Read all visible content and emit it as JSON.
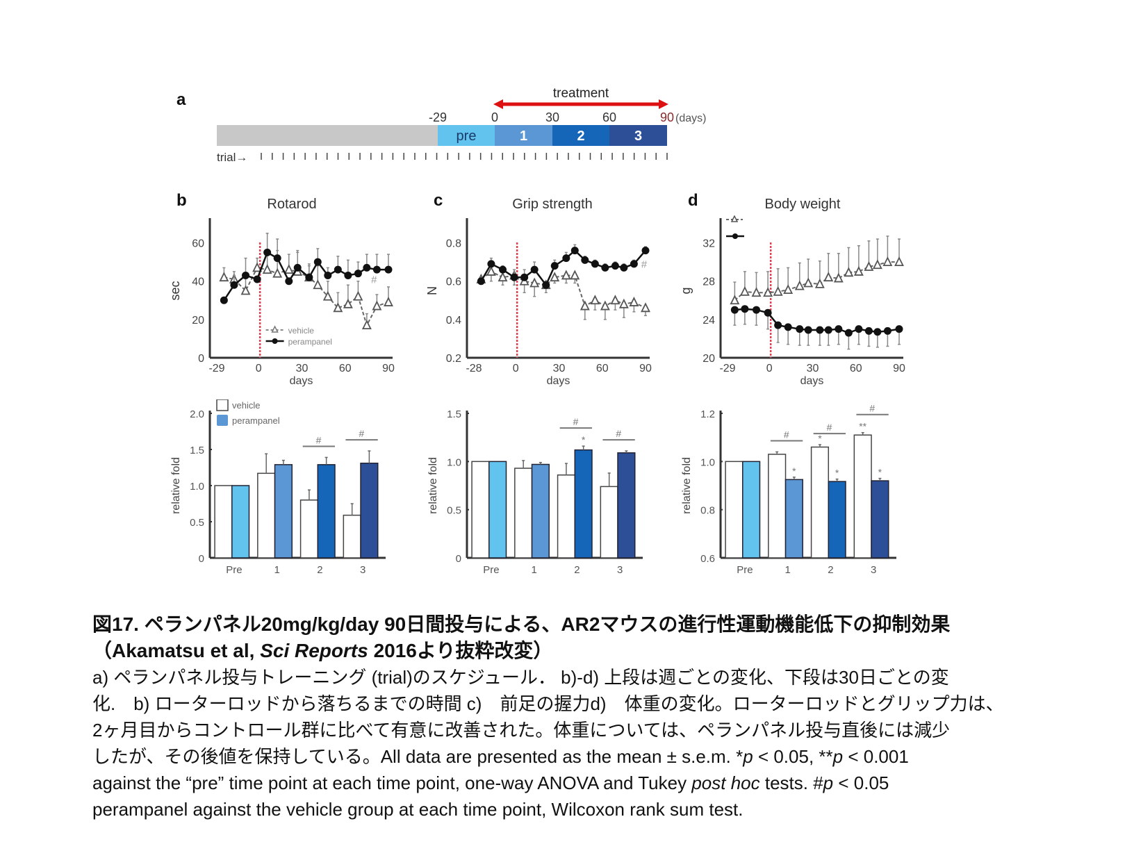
{
  "panels": {
    "a": {
      "letter": "a"
    },
    "b": {
      "letter": "b",
      "title": "Rotarod"
    },
    "c": {
      "letter": "c",
      "title": "Grip strength"
    },
    "d": {
      "letter": "d",
      "title": "Body weight"
    }
  },
  "colors": {
    "pre_gray": "#c8c8c8",
    "pre": "#63c3ef",
    "month1": "#5b97d4",
    "month2": "#1565b8",
    "month3": "#2c4f97",
    "treatment_arrow": "#dd1111",
    "red_line": "#e04050",
    "vehicle_marker": "#ffffff",
    "perampanel_marker": "#111111"
  },
  "chart_data": [
    {
      "id": "a",
      "type": "timeline",
      "treatment_label": "treatment",
      "tick_labels": [
        "-29",
        "0",
        "30",
        "60",
        "90"
      ],
      "unit_label": "(days)",
      "segments": [
        {
          "label": "",
          "color_key": "pre_gray"
        },
        {
          "label": "pre",
          "color_key": "pre"
        },
        {
          "label": "1",
          "color_key": "month1"
        },
        {
          "label": "2",
          "color_key": "month2"
        },
        {
          "label": "3",
          "color_key": "month3"
        }
      ],
      "trial_label": "trial→",
      "trial_tick_count": 38
    },
    {
      "id": "b-line",
      "type": "line",
      "title": "Rotarod",
      "xlabel": "days",
      "ylabel": "sec",
      "xlim": [
        -29,
        90
      ],
      "ylim": [
        0,
        70
      ],
      "xticks": [
        -29,
        0,
        30,
        60,
        90
      ],
      "xtick_labels": [
        "-29",
        "0",
        "30",
        "60",
        "90"
      ],
      "yticks": [
        0,
        20,
        40,
        60
      ],
      "ytick_labels": [
        "0",
        "20",
        "40",
        "60"
      ],
      "treatment_start": 0,
      "legend": [
        "vehicle",
        "perampanel"
      ],
      "legend_position": "bottom-center",
      "annotations": [
        {
          "text": "#",
          "x": 80,
          "y": 39
        }
      ],
      "series": [
        {
          "name": "vehicle",
          "marker": "triangle-open",
          "line": "dashed",
          "x": [
            -24,
            -17,
            -9,
            -1,
            6,
            13,
            21,
            27,
            35,
            41,
            48,
            55,
            62,
            69,
            75,
            82,
            90
          ],
          "y": [
            42,
            41,
            35,
            47,
            46,
            44,
            46,
            45,
            42,
            38,
            32,
            26,
            28,
            32,
            17,
            27,
            29
          ],
          "err": [
            5,
            4,
            7,
            5,
            9,
            12,
            8,
            10,
            6,
            10,
            8,
            8,
            10,
            8,
            6,
            6,
            8
          ]
        },
        {
          "name": "perampanel",
          "marker": "circle-filled",
          "line": "solid",
          "x": [
            -24,
            -17,
            -9,
            -1,
            6,
            13,
            21,
            27,
            35,
            41,
            48,
            55,
            62,
            69,
            75,
            82,
            90
          ],
          "y": [
            30,
            38,
            43,
            41,
            55,
            52,
            40,
            47,
            42,
            50,
            43,
            46,
            43,
            44,
            47,
            46,
            46
          ],
          "err": [
            0,
            5,
            9,
            0,
            10,
            10,
            0,
            9,
            7,
            7,
            4,
            7,
            8,
            6,
            7,
            8,
            8
          ]
        }
      ]
    },
    {
      "id": "c-line",
      "type": "line",
      "title": "Grip strength",
      "xlabel": "days",
      "ylabel": "N",
      "xlim": [
        -29,
        90
      ],
      "ylim": [
        0.2,
        0.9
      ],
      "xticks": [
        -29,
        0,
        30,
        60,
        90
      ],
      "xtick_labels": [
        "-28",
        "0",
        "30",
        "60",
        "90"
      ],
      "yticks": [
        0.2,
        0.4,
        0.6,
        0.8
      ],
      "ytick_labels": [
        "0.2",
        "0.4",
        "0.6",
        "0.8"
      ],
      "treatment_start": 0,
      "annotations": [
        {
          "text": "#",
          "x": 89,
          "y": 0.67
        }
      ],
      "series": [
        {
          "name": "vehicle",
          "marker": "triangle-open",
          "line": "dashed",
          "x": [
            -24,
            -17,
            -9,
            -1,
            6,
            13,
            21,
            27,
            35,
            41,
            48,
            55,
            62,
            69,
            75,
            82,
            90
          ],
          "y": [
            0.61,
            0.65,
            0.62,
            0.63,
            0.6,
            0.59,
            0.58,
            0.62,
            0.63,
            0.63,
            0.47,
            0.5,
            0.47,
            0.5,
            0.48,
            0.49,
            0.46
          ],
          "err": [
            0.02,
            0.05,
            0.04,
            0.05,
            0.06,
            0.07,
            0.04,
            0.03,
            0.04,
            0.04,
            0.07,
            0.05,
            0.07,
            0.05,
            0.07,
            0.05,
            0.04
          ]
        },
        {
          "name": "perampanel",
          "marker": "circle-filled",
          "line": "solid",
          "x": [
            -24,
            -17,
            -9,
            -1,
            6,
            13,
            21,
            27,
            35,
            41,
            48,
            55,
            62,
            69,
            75,
            82,
            90
          ],
          "y": [
            0.6,
            0.69,
            0.66,
            0.62,
            0.62,
            0.66,
            0.58,
            0.68,
            0.72,
            0.76,
            0.71,
            0.69,
            0.67,
            0.68,
            0.67,
            0.69,
            0.76
          ],
          "err": [
            0.02,
            0.03,
            0.02,
            0.04,
            0.04,
            0.04,
            0.02,
            0.03,
            0.03,
            0.03,
            0.02,
            0.02,
            0.02,
            0.02,
            0.02,
            0.02,
            0.02
          ]
        }
      ]
    },
    {
      "id": "d-line",
      "type": "line",
      "title": "Body weight",
      "xlabel": "days",
      "ylabel": "g",
      "xlim": [
        -29,
        90
      ],
      "ylim": [
        20,
        34
      ],
      "xticks": [
        -29,
        0,
        30,
        60,
        90
      ],
      "xtick_labels": [
        "-29",
        "0",
        "30",
        "60",
        "90"
      ],
      "yticks": [
        20,
        24,
        28,
        32
      ],
      "ytick_labels": [
        "20",
        "24",
        "28",
        "32"
      ],
      "treatment_start": 0,
      "legend_position": "top-left",
      "series": [
        {
          "name": "vehicle",
          "marker": "triangle-open",
          "line": "dashed",
          "x": [
            -24,
            -17,
            -9,
            -1,
            6,
            13,
            21,
            27,
            35,
            41,
            48,
            55,
            62,
            69,
            75,
            82,
            90
          ],
          "y": [
            26.0,
            26.9,
            26.8,
            26.8,
            26.9,
            27.1,
            27.5,
            27.8,
            27.7,
            28.4,
            28.3,
            28.9,
            29.0,
            29.5,
            29.7,
            30.0,
            30.0
          ],
          "err": [
            1.9,
            2.1,
            2.1,
            2.2,
            2.4,
            2.3,
            2.4,
            2.5,
            2.4,
            2.5,
            2.6,
            2.6,
            2.7,
            2.7,
            2.7,
            2.7,
            2.4
          ]
        },
        {
          "name": "perampanel",
          "marker": "circle-filled",
          "line": "solid",
          "x": [
            -24,
            -17,
            -9,
            -1,
            6,
            13,
            21,
            27,
            35,
            41,
            48,
            55,
            62,
            69,
            75,
            82,
            90
          ],
          "y": [
            25.0,
            25.1,
            25.0,
            24.7,
            23.4,
            23.2,
            23.0,
            22.9,
            22.9,
            22.9,
            23.0,
            22.6,
            23.0,
            22.8,
            22.7,
            22.8,
            23.0
          ],
          "err": [
            1.6,
            1.6,
            1.6,
            1.7,
            1.8,
            1.8,
            1.7,
            1.6,
            1.6,
            1.6,
            1.6,
            1.7,
            1.6,
            1.6,
            1.6,
            1.6,
            1.6
          ]
        }
      ]
    },
    {
      "id": "b-bar",
      "type": "bar",
      "ylabel": "relative fold",
      "ylim": [
        0,
        2.0
      ],
      "yticks": [
        0,
        0.5,
        1.0,
        1.5,
        2.0
      ],
      "ytick_labels": [
        "0",
        "0.5",
        "1.0",
        "1.5",
        "2.0"
      ],
      "categories": [
        "Pre",
        "1",
        "2",
        "3"
      ],
      "legend": [
        "vehicle",
        "perampanel"
      ],
      "legend_position": "top-left",
      "series": [
        {
          "name": "vehicle",
          "values": [
            1.0,
            1.17,
            0.8,
            0.59
          ],
          "err": [
            0,
            0.27,
            0.14,
            0.16
          ]
        },
        {
          "name": "perampanel",
          "values": [
            1.0,
            1.29,
            1.29,
            1.31
          ],
          "err": [
            0,
            0.06,
            0.1,
            0.17
          ]
        }
      ],
      "significance": [
        {
          "category": 2,
          "text": "#"
        },
        {
          "category": 3,
          "text": "#"
        }
      ]
    },
    {
      "id": "c-bar",
      "type": "bar",
      "ylabel": "relative fold",
      "ylim": [
        0,
        1.5
      ],
      "yticks": [
        0,
        0.5,
        1.0,
        1.5
      ],
      "ytick_labels": [
        "0",
        "0.5",
        "1.0",
        "1.5"
      ],
      "categories": [
        "Pre",
        "1",
        "2",
        "3"
      ],
      "series": [
        {
          "name": "vehicle",
          "values": [
            1.0,
            0.93,
            0.86,
            0.74
          ],
          "err": [
            0,
            0.08,
            0.12,
            0.14
          ]
        },
        {
          "name": "perampanel",
          "values": [
            1.0,
            0.97,
            1.12,
            1.09
          ],
          "err": [
            0,
            0.02,
            0.04,
            0.02
          ]
        }
      ],
      "significance": [
        {
          "category": 2,
          "text": "#",
          "star": "*"
        },
        {
          "category": 3,
          "text": "#"
        }
      ]
    },
    {
      "id": "d-bar",
      "type": "bar",
      "ylabel": "relative fold",
      "ylim": [
        0.6,
        1.2
      ],
      "yticks": [
        0.6,
        0.8,
        1.0,
        1.2
      ],
      "ytick_labels": [
        "0.6",
        "0.8",
        "1.0",
        "1.2"
      ],
      "categories": [
        "Pre",
        "1",
        "2",
        "3"
      ],
      "series": [
        {
          "name": "vehicle",
          "values": [
            1.0,
            1.03,
            1.06,
            1.11
          ],
          "err": [
            0,
            0.01,
            0.01,
            0.01
          ],
          "stars": [
            "",
            "",
            "*",
            "**"
          ]
        },
        {
          "name": "perampanel",
          "values": [
            1.0,
            0.925,
            0.917,
            0.92
          ],
          "err": [
            0,
            0.01,
            0.01,
            0.01
          ],
          "stars": [
            "",
            "*",
            "*",
            "*"
          ]
        }
      ],
      "significance": [
        {
          "category": 1,
          "text": "#"
        },
        {
          "category": 2,
          "text": "#"
        },
        {
          "category": 3,
          "text": "#"
        }
      ]
    }
  ],
  "caption": {
    "title_line1": "図17. ペランパネル20mg/kg/day 90日間投与による、AR2マウスの進行性運動機能低下の抑制効果",
    "title_line2_pre": "（Akamatsu et al, ",
    "title_line2_journal": "Sci Reports",
    "title_line2_post": " 2016より抜粋改変）",
    "body_line1": "a) ペランパネル投与トレーニング (trial)のスケジュール． b)-d) 上段は週ごとの変化、下段は30日ごとの変",
    "body_line2": "化.　b) ローターロッドから落ちるまでの時間 c)　前足の握力d)　体重の変化。ローターロッドとグリップ力は、",
    "body_line3": "2ヶ月目からコントロール群に比べて有意に改善された。体重については、ペランパネル投与直後には減少",
    "body_line4_pre": "したが、その後値を保持している。All data are presented as the mean ± s.e.m. *",
    "p": "p",
    "body_line4_mid": " < 0.05, **",
    "body_line4_post": " < 0.001",
    "body_line5_pre": "against the “pre” time point at each time point, one-way ANOVA and Tukey ",
    "body_line5_italic": "post hoc",
    "body_line5_mid": " tests. #",
    "body_line5_post": " < 0.05",
    "body_line6": "perampanel against the vehicle group at each time point, Wilcoxon rank sum test."
  }
}
